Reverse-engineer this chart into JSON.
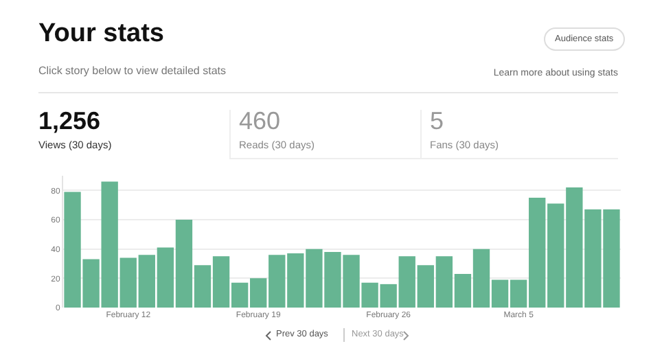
{
  "chart_data": {
    "type": "bar",
    "title": "Your stats",
    "subtitle": "Click story below to view detailed stats",
    "categories": [
      null,
      null,
      null,
      "February 12",
      null,
      null,
      null,
      null,
      null,
      null,
      "February 19",
      null,
      null,
      null,
      null,
      null,
      null,
      "February 26",
      null,
      null,
      null,
      null,
      null,
      null,
      "March 5",
      null,
      null,
      null,
      null,
      null
    ],
    "values": [
      79,
      33,
      86,
      34,
      36,
      41,
      60,
      29,
      35,
      17,
      20,
      36,
      37,
      40,
      38,
      36,
      17,
      16,
      35,
      29,
      35,
      23,
      40,
      19,
      19,
      75,
      71,
      82,
      67,
      67
    ],
    "color": "#66b592",
    "ylim": [
      0,
      90
    ],
    "yticks": [
      0,
      20,
      40,
      60,
      80
    ],
    "grid": "y",
    "annotations": [
      "Audience stats",
      "Learn more about using stats",
      "1,256",
      "Views (30 days)",
      "460",
      "Reads (30 days)",
      "5",
      "Fans (30 days)",
      "Prev 30 days",
      "Next 30 days"
    ]
  }
}
